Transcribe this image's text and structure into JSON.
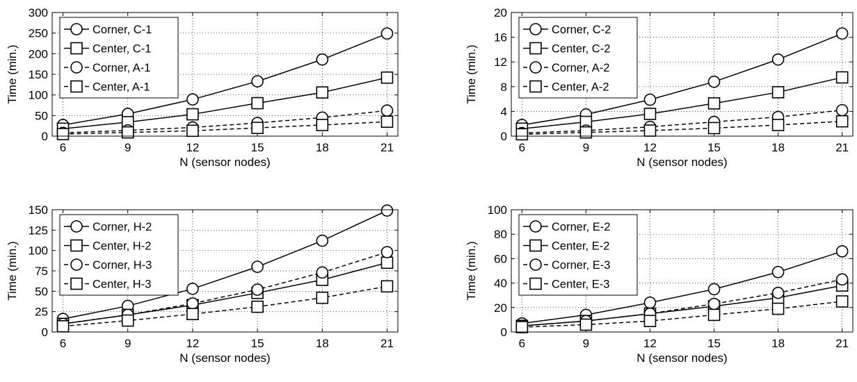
{
  "chart_data": [
    {
      "type": "line",
      "xlabel": "N (sensor nodes)",
      "ylabel": "Time (min.)",
      "x": [
        6,
        9,
        12,
        15,
        18,
        21
      ],
      "xlim": [
        5.5,
        21.5
      ],
      "xticks": [
        6,
        9,
        12,
        15,
        18,
        21
      ],
      "ylim": [
        0,
        300
      ],
      "yticks": [
        0,
        50,
        100,
        150,
        200,
        250,
        300
      ],
      "grid": true,
      "legend": "top-left",
      "series": [
        {
          "name": "Corner, C-1",
          "marker": "circle",
          "line": "solid",
          "values": [
            27,
            54,
            89,
            133,
            186,
            249
          ]
        },
        {
          "name": "Center, C-1",
          "marker": "square",
          "line": "solid",
          "values": [
            18,
            34,
            53,
            80,
            106,
            142
          ]
        },
        {
          "name": "Corner, A-1",
          "marker": "circle",
          "line": "dashed",
          "values": [
            8,
            14,
            21,
            32,
            45,
            62
          ]
        },
        {
          "name": "Center, A-1",
          "marker": "square",
          "line": "dashed",
          "values": [
            5,
            9,
            13,
            20,
            27,
            35
          ]
        }
      ]
    },
    {
      "type": "line",
      "xlabel": "N (sensor nodes)",
      "ylabel": "Time (min.)",
      "x": [
        6,
        9,
        12,
        15,
        18,
        21
      ],
      "xlim": [
        5.5,
        21.5
      ],
      "xticks": [
        6,
        9,
        12,
        15,
        18,
        21
      ],
      "ylim": [
        0,
        20
      ],
      "yticks": [
        0,
        4,
        8,
        12,
        16,
        20
      ],
      "grid": true,
      "legend": "top-left",
      "series": [
        {
          "name": "Corner, C-2",
          "marker": "circle",
          "line": "solid",
          "values": [
            1.8,
            3.5,
            5.9,
            8.8,
            12.4,
            16.6
          ]
        },
        {
          "name": "Center, C-2",
          "marker": "square",
          "line": "solid",
          "values": [
            1.2,
            2.3,
            3.6,
            5.3,
            7.1,
            9.5
          ]
        },
        {
          "name": "Corner, A-2",
          "marker": "circle",
          "line": "dashed",
          "values": [
            0.5,
            0.9,
            1.5,
            2.3,
            3.1,
            4.2
          ]
        },
        {
          "name": "Center, A-2",
          "marker": "square",
          "line": "dashed",
          "values": [
            0.3,
            0.6,
            0.9,
            1.3,
            1.8,
            2.4
          ]
        }
      ]
    },
    {
      "type": "line",
      "xlabel": "N (sensor nodes)",
      "ylabel": "Time (min.)",
      "x": [
        6,
        9,
        12,
        15,
        18,
        21
      ],
      "xlim": [
        5.5,
        21.5
      ],
      "xticks": [
        6,
        9,
        12,
        15,
        18,
        21
      ],
      "ylim": [
        0,
        150
      ],
      "yticks": [
        0,
        25,
        50,
        75,
        100,
        125,
        150
      ],
      "grid": true,
      "legend": "top-left",
      "series": [
        {
          "name": "Corner, H-2",
          "marker": "circle",
          "line": "solid",
          "values": [
            16,
            32,
            53,
            80,
            112,
            149
          ]
        },
        {
          "name": "Center, H-2",
          "marker": "square",
          "line": "solid",
          "values": [
            10,
            21,
            33,
            48,
            64,
            85
          ]
        },
        {
          "name": "Corner, H-3",
          "marker": "circle",
          "line": "dashed",
          "values": [
            10,
            21,
            35,
            52,
            73,
            98
          ]
        },
        {
          "name": "Center, H-3",
          "marker": "square",
          "line": "dashed",
          "values": [
            7,
            14,
            22,
            31,
            42,
            56
          ]
        }
      ]
    },
    {
      "type": "line",
      "xlabel": "N (sensor nodes)",
      "ylabel": "Time (min.)",
      "x": [
        6,
        9,
        12,
        15,
        18,
        21
      ],
      "xlim": [
        5.5,
        21.5
      ],
      "xticks": [
        6,
        9,
        12,
        15,
        18,
        21
      ],
      "ylim": [
        0,
        100
      ],
      "yticks": [
        0,
        20,
        40,
        60,
        80,
        100
      ],
      "grid": true,
      "legend": "top-left",
      "series": [
        {
          "name": "Corner, E-2",
          "marker": "circle",
          "line": "solid",
          "values": [
            7,
            14,
            24,
            35,
            49,
            66
          ]
        },
        {
          "name": "Center, E-2",
          "marker": "square",
          "line": "solid",
          "values": [
            5,
            9,
            15,
            21,
            28,
            38
          ]
        },
        {
          "name": "Corner, E-3",
          "marker": "circle",
          "line": "dashed",
          "values": [
            5,
            9,
            15,
            23,
            32,
            43
          ]
        },
        {
          "name": "Center, E-3",
          "marker": "square",
          "line": "dashed",
          "values": [
            4,
            6,
            9,
            14,
            19,
            25
          ]
        }
      ]
    }
  ]
}
